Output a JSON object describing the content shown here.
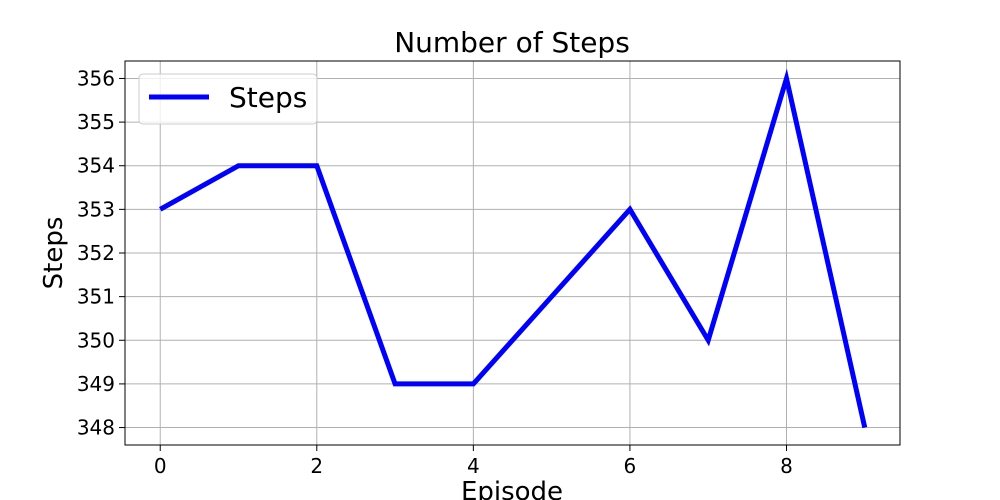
{
  "chart_data": {
    "type": "line",
    "title": "Number of Steps",
    "xlabel": "Episode",
    "ylabel": "Steps",
    "x": [
      0,
      1,
      2,
      3,
      4,
      5,
      6,
      7,
      8,
      9
    ],
    "series": [
      {
        "name": "Steps",
        "color": "#0000ff",
        "values": [
          353,
          354,
          354,
          349,
          349,
          351,
          353,
          350,
          356,
          348
        ]
      }
    ],
    "xlim": [
      -0.45,
      9.45
    ],
    "ylim": [
      347.6,
      356.4
    ],
    "xticks": [
      0,
      2,
      4,
      6,
      8
    ],
    "yticks": [
      348,
      349,
      350,
      351,
      352,
      353,
      354,
      355,
      356
    ],
    "grid": true,
    "legend_position": "top-left"
  }
}
